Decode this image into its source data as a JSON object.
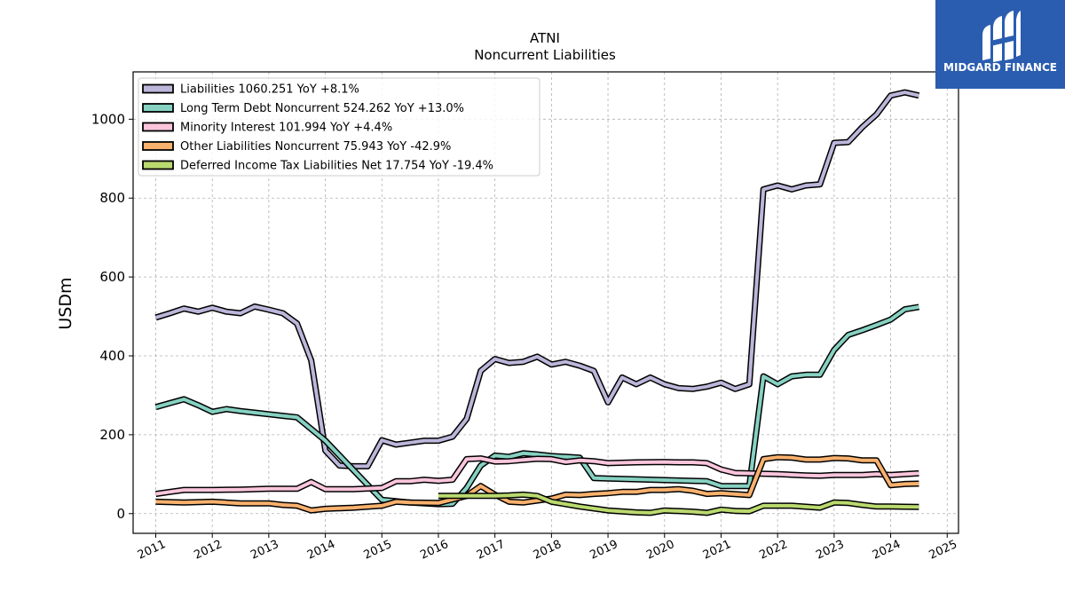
{
  "chart_data": {
    "type": "line",
    "title": "ATNI",
    "subtitle": "Noncurrent  Liabilities",
    "ylabel": "USDm",
    "xlabel": "",
    "xlim": [
      2010.6,
      2025.2
    ],
    "ylim": [
      -50,
      1120
    ],
    "grid": true,
    "legend_position": "top-left",
    "y_ticks": [
      0,
      200,
      400,
      600,
      800,
      1000
    ],
    "x_ticks": [
      2011,
      2012,
      2013,
      2014,
      2015,
      2016,
      2017,
      2018,
      2019,
      2020,
      2021,
      2022,
      2023,
      2024,
      2025
    ],
    "series": [
      {
        "name": "Liabilities",
        "legend_label": "Liabilities  1060.251 YoY +8.1%",
        "color": "#bcb6da",
        "points": [
          [
            2011.0,
            497
          ],
          [
            2011.25,
            508
          ],
          [
            2011.5,
            520
          ],
          [
            2011.75,
            512
          ],
          [
            2012.0,
            522
          ],
          [
            2012.25,
            512
          ],
          [
            2012.5,
            508
          ],
          [
            2012.75,
            525
          ],
          [
            2013.0,
            517
          ],
          [
            2013.25,
            508
          ],
          [
            2013.5,
            482
          ],
          [
            2013.75,
            388
          ],
          [
            2014.0,
            160
          ],
          [
            2014.25,
            122
          ],
          [
            2014.5,
            120
          ],
          [
            2014.75,
            120
          ],
          [
            2015.0,
            186
          ],
          [
            2015.25,
            175
          ],
          [
            2015.5,
            180
          ],
          [
            2015.75,
            185
          ],
          [
            2016.0,
            185
          ],
          [
            2016.25,
            195
          ],
          [
            2016.5,
            240
          ],
          [
            2016.75,
            362
          ],
          [
            2017.0,
            392
          ],
          [
            2017.25,
            382
          ],
          [
            2017.5,
            385
          ],
          [
            2017.75,
            398
          ],
          [
            2018.0,
            378
          ],
          [
            2018.25,
            385
          ],
          [
            2018.5,
            375
          ],
          [
            2018.75,
            362
          ],
          [
            2019.0,
            282
          ],
          [
            2019.25,
            345
          ],
          [
            2019.5,
            328
          ],
          [
            2019.75,
            345
          ],
          [
            2020.0,
            328
          ],
          [
            2020.25,
            318
          ],
          [
            2020.5,
            316
          ],
          [
            2020.75,
            322
          ],
          [
            2021.0,
            332
          ],
          [
            2021.25,
            316
          ],
          [
            2021.5,
            328
          ],
          [
            2021.75,
            822
          ],
          [
            2022.0,
            832
          ],
          [
            2022.25,
            822
          ],
          [
            2022.5,
            832
          ],
          [
            2022.75,
            835
          ],
          [
            2023.0,
            940
          ],
          [
            2023.25,
            942
          ],
          [
            2023.5,
            980
          ],
          [
            2023.75,
            1012
          ],
          [
            2024.0,
            1060
          ],
          [
            2024.25,
            1068
          ],
          [
            2024.5,
            1060
          ]
        ]
      },
      {
        "name": "Long Term Debt Noncurrent",
        "legend_label": "Long Term Debt Noncurrent  524.262 YoY +13.0%",
        "color": "#86d1c2",
        "points": [
          [
            2011.0,
            270
          ],
          [
            2011.25,
            280
          ],
          [
            2011.5,
            290
          ],
          [
            2011.75,
            275
          ],
          [
            2012.0,
            258
          ],
          [
            2012.25,
            265
          ],
          [
            2012.5,
            260
          ],
          [
            2012.75,
            256
          ],
          [
            2013.0,
            252
          ],
          [
            2013.25,
            248
          ],
          [
            2013.5,
            244
          ],
          [
            2014.0,
            185
          ],
          [
            2014.5,
            110
          ],
          [
            2015.0,
            35
          ],
          [
            2015.5,
            28
          ],
          [
            2016.0,
            24
          ],
          [
            2016.25,
            25
          ],
          [
            2016.5,
            65
          ],
          [
            2016.75,
            122
          ],
          [
            2017.0,
            147
          ],
          [
            2017.25,
            144
          ],
          [
            2017.5,
            153
          ],
          [
            2017.75,
            150
          ],
          [
            2018.0,
            146
          ],
          [
            2018.25,
            144
          ],
          [
            2018.5,
            142
          ],
          [
            2018.75,
            90
          ],
          [
            2019.0,
            89
          ],
          [
            2019.5,
            87
          ],
          [
            2020.0,
            85
          ],
          [
            2020.5,
            83
          ],
          [
            2020.75,
            82
          ],
          [
            2021.0,
            70
          ],
          [
            2021.5,
            70
          ],
          [
            2021.75,
            348
          ],
          [
            2022.0,
            328
          ],
          [
            2022.25,
            348
          ],
          [
            2022.5,
            352
          ],
          [
            2022.75,
            352
          ],
          [
            2023.0,
            415
          ],
          [
            2023.25,
            453
          ],
          [
            2023.5,
            465
          ],
          [
            2023.75,
            478
          ],
          [
            2024.0,
            492
          ],
          [
            2024.25,
            518
          ],
          [
            2024.5,
            524
          ]
        ]
      },
      {
        "name": "Minority Interest",
        "legend_label": "Minority Interest  101.994 YoY +4.4%",
        "color": "#fbc5dc",
        "points": [
          [
            2011.0,
            50
          ],
          [
            2011.25,
            55
          ],
          [
            2011.5,
            60
          ],
          [
            2012.0,
            60
          ],
          [
            2012.5,
            61
          ],
          [
            2013.0,
            63
          ],
          [
            2013.5,
            63
          ],
          [
            2013.75,
            80
          ],
          [
            2014.0,
            62
          ],
          [
            2014.5,
            62
          ],
          [
            2015.0,
            65
          ],
          [
            2015.25,
            82
          ],
          [
            2015.5,
            82
          ],
          [
            2015.75,
            86
          ],
          [
            2016.0,
            83
          ],
          [
            2016.25,
            86
          ],
          [
            2016.5,
            138
          ],
          [
            2016.75,
            140
          ],
          [
            2017.0,
            132
          ],
          [
            2017.25,
            133
          ],
          [
            2017.5,
            136
          ],
          [
            2017.75,
            139
          ],
          [
            2018.0,
            138
          ],
          [
            2018.25,
            131
          ],
          [
            2018.5,
            135
          ],
          [
            2018.75,
            133
          ],
          [
            2019.0,
            128
          ],
          [
            2019.5,
            130
          ],
          [
            2020.0,
            131
          ],
          [
            2020.25,
            130
          ],
          [
            2020.5,
            130
          ],
          [
            2020.75,
            128
          ],
          [
            2021.0,
            112
          ],
          [
            2021.25,
            103
          ],
          [
            2021.5,
            102
          ],
          [
            2021.75,
            101
          ],
          [
            2022.0,
            100
          ],
          [
            2022.5,
            97
          ],
          [
            2022.75,
            96
          ],
          [
            2023.0,
            98
          ],
          [
            2023.5,
            98
          ],
          [
            2023.75,
            100
          ],
          [
            2024.0,
            98
          ],
          [
            2024.5,
            102
          ]
        ]
      },
      {
        "name": "Other Liabilities Noncurrent",
        "legend_label": "Other Liabilities Noncurrent  75.943 YoY -42.9%",
        "color": "#f9b16e",
        "points": [
          [
            2011.0,
            30
          ],
          [
            2011.5,
            28
          ],
          [
            2012.0,
            30
          ],
          [
            2012.5,
            26
          ],
          [
            2013.0,
            26
          ],
          [
            2013.25,
            22
          ],
          [
            2013.5,
            20
          ],
          [
            2013.75,
            8
          ],
          [
            2014.0,
            12
          ],
          [
            2014.5,
            15
          ],
          [
            2015.0,
            20
          ],
          [
            2015.25,
            30
          ],
          [
            2015.5,
            28
          ],
          [
            2016.0,
            27
          ],
          [
            2016.5,
            45
          ],
          [
            2016.75,
            70
          ],
          [
            2017.0,
            48
          ],
          [
            2017.25,
            30
          ],
          [
            2017.5,
            28
          ],
          [
            2018.0,
            38
          ],
          [
            2018.25,
            48
          ],
          [
            2018.5,
            47
          ],
          [
            2018.75,
            50
          ],
          [
            2019.0,
            52
          ],
          [
            2019.25,
            55
          ],
          [
            2019.5,
            55
          ],
          [
            2019.75,
            60
          ],
          [
            2020.0,
            60
          ],
          [
            2020.25,
            62
          ],
          [
            2020.5,
            58
          ],
          [
            2020.75,
            50
          ],
          [
            2021.0,
            52
          ],
          [
            2021.5,
            47
          ],
          [
            2021.75,
            138
          ],
          [
            2022.0,
            143
          ],
          [
            2022.25,
            142
          ],
          [
            2022.5,
            137
          ],
          [
            2022.75,
            137
          ],
          [
            2023.0,
            141
          ],
          [
            2023.25,
            140
          ],
          [
            2023.5,
            135
          ],
          [
            2023.75,
            135
          ],
          [
            2024.0,
            72
          ],
          [
            2024.25,
            75
          ],
          [
            2024.5,
            76
          ]
        ]
      },
      {
        "name": "Deferred Income Tax Liabilities Net",
        "legend_label": "Deferred Income Tax Liabilities Net  17.754 YoY -19.4%",
        "color": "#bada6f",
        "points": [
          [
            2016.0,
            45
          ],
          [
            2016.5,
            45
          ],
          [
            2017.0,
            45
          ],
          [
            2017.25,
            46
          ],
          [
            2017.5,
            48
          ],
          [
            2017.75,
            45
          ],
          [
            2018.0,
            30
          ],
          [
            2018.5,
            18
          ],
          [
            2019.0,
            8
          ],
          [
            2019.5,
            3
          ],
          [
            2019.75,
            2
          ],
          [
            2020.0,
            8
          ],
          [
            2020.5,
            5
          ],
          [
            2020.75,
            2
          ],
          [
            2021.0,
            10
          ],
          [
            2021.25,
            7
          ],
          [
            2021.5,
            6
          ],
          [
            2021.75,
            20
          ],
          [
            2022.0,
            20
          ],
          [
            2022.25,
            20
          ],
          [
            2022.75,
            15
          ],
          [
            2023.0,
            28
          ],
          [
            2023.25,
            27
          ],
          [
            2023.5,
            22
          ],
          [
            2023.75,
            18
          ],
          [
            2024.0,
            18
          ],
          [
            2024.5,
            17
          ]
        ]
      }
    ]
  },
  "logo": {
    "brand": "MIDGARD FINANCE",
    "background": "#2a5db0"
  }
}
